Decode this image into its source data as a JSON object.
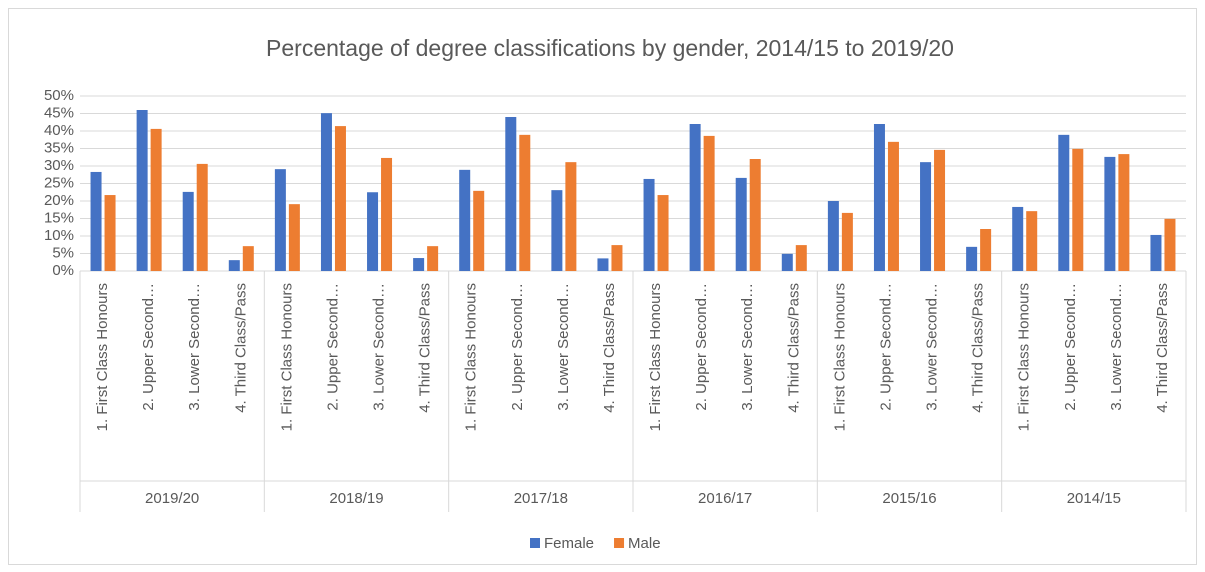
{
  "chart_data": {
    "type": "bar",
    "title": "Percentage of degree classifications by gender, 2014/15 to 2019/20",
    "categories": [
      "1. First Class Honours",
      "2. Upper Second…",
      "3. Lower Second…",
      "4. Third Class/Pass",
      "1. First Class Honours",
      "2. Upper Second…",
      "3. Lower Second…",
      "4. Third Class/Pass",
      "1. First Class Honours",
      "2. Upper Second…",
      "3. Lower Second…",
      "4. Third Class/Pass",
      "1. First Class Honours",
      "2. Upper Second…",
      "3. Lower Second…",
      "4. Third Class/Pass",
      "1. First Class Honours",
      "2. Upper Second…",
      "3. Lower Second…",
      "4. Third Class/Pass",
      "1. First Class Honours",
      "2. Upper Second…",
      "3. Lower Second…",
      "4. Third Class/Pass"
    ],
    "groups": [
      "2019/20",
      "2018/19",
      "2017/18",
      "2016/17",
      "2015/16",
      "2014/15"
    ],
    "series": [
      {
        "name": "Female",
        "color": "#4472c4",
        "values": [
          28.3,
          46,
          22.6,
          3.1,
          29.1,
          45.1,
          22.5,
          3.7,
          28.9,
          44,
          23.1,
          3.6,
          26.3,
          42,
          26.6,
          4.9,
          20,
          42,
          31.1,
          6.9,
          18.3,
          38.9,
          32.6,
          10.3
        ]
      },
      {
        "name": "Male",
        "color": "#ed7d31",
        "values": [
          21.7,
          40.6,
          30.6,
          7.1,
          19.1,
          41.4,
          32.3,
          7.1,
          22.9,
          38.9,
          31.1,
          7.4,
          21.7,
          38.6,
          32,
          7.4,
          16.6,
          36.9,
          34.6,
          12,
          17.1,
          34.9,
          33.4,
          14.9
        ]
      }
    ],
    "ylim": [
      0,
      50
    ],
    "yticks": [
      {
        "value": 0,
        "label": "0%"
      },
      {
        "value": 5,
        "label": "5%"
      },
      {
        "value": 10,
        "label": "10%"
      },
      {
        "value": 15,
        "label": "15%"
      },
      {
        "value": 20,
        "label": "20%"
      },
      {
        "value": 25,
        "label": "25%"
      },
      {
        "value": 30,
        "label": "30%"
      },
      {
        "value": 35,
        "label": "35%"
      },
      {
        "value": 40,
        "label": "40%"
      },
      {
        "value": 45,
        "label": "45%"
      },
      {
        "value": 50,
        "label": "50%"
      }
    ],
    "grid": true,
    "legend": "bottom"
  }
}
